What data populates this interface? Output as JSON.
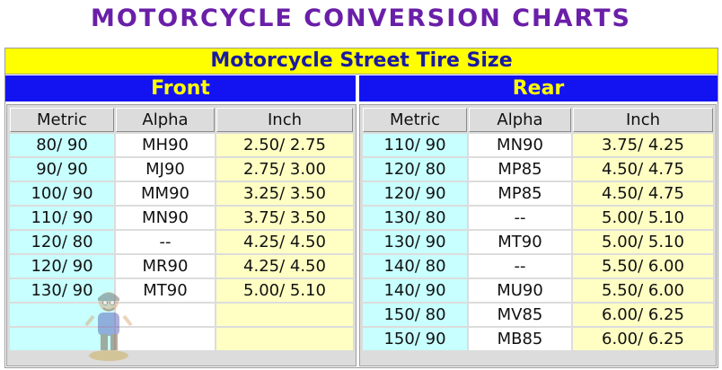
{
  "page": {
    "title": "MOTORCYCLE CONVERSION CHARTS"
  },
  "chart": {
    "title": "Motorcycle Street Tire Size",
    "columns": [
      "Metric",
      "Alpha",
      "Inch"
    ],
    "front": {
      "label": "Front",
      "rows": [
        [
          "80/ 90",
          "MH90",
          "2.50/ 2.75"
        ],
        [
          "90/ 90",
          "MJ90",
          "2.75/ 3.00"
        ],
        [
          "100/ 90",
          "MM90",
          "3.25/ 3.50"
        ],
        [
          "110/ 90",
          "MN90",
          "3.75/ 3.50"
        ],
        [
          "120/ 80",
          "--",
          "4.25/ 4.50"
        ],
        [
          "120/ 90",
          "MR90",
          "4.25/ 4.50"
        ],
        [
          "130/ 90",
          "MT90",
          "5.00/ 5.10"
        ],
        [
          "",
          "",
          ""
        ],
        [
          "",
          "",
          ""
        ]
      ]
    },
    "rear": {
      "label": "Rear",
      "rows": [
        [
          "110/ 90",
          "MN90",
          "3.75/ 4.25"
        ],
        [
          "120/ 80",
          "MP85",
          "4.50/ 4.75"
        ],
        [
          "120/ 90",
          "MP85",
          "4.50/ 4.75"
        ],
        [
          "130/ 80",
          "--",
          "5.00/ 5.10"
        ],
        [
          "130/ 90",
          "MT90",
          "5.00/ 5.10"
        ],
        [
          "140/ 80",
          "--",
          "5.50/ 6.00"
        ],
        [
          "140/ 90",
          "MU90",
          "5.50/ 6.00"
        ],
        [
          "150/ 80",
          "MV85",
          "6.00/ 6.25"
        ],
        [
          "150/ 90",
          "MB85",
          "6.00/ 6.25"
        ]
      ]
    }
  },
  "icons": {
    "mascot": "cartoon-rider-watermark-icon"
  }
}
